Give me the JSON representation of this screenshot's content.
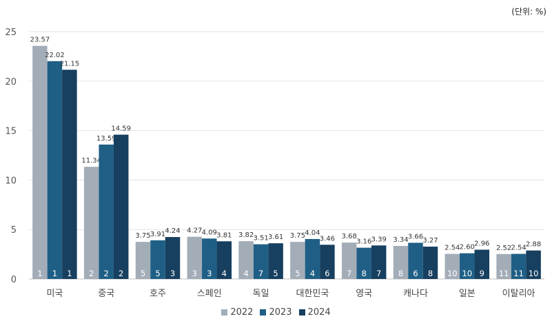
{
  "unit_label": "(단위: %)",
  "chart_data": {
    "type": "bar",
    "ylim": [
      0,
      25
    ],
    "yticks": [
      0,
      5,
      10,
      15,
      20,
      25
    ],
    "grid": true,
    "legend_position": "bottom",
    "categories": [
      "미국",
      "중국",
      "호주",
      "스페인",
      "독일",
      "대한민국",
      "영국",
      "캐나다",
      "일본",
      "이탈리아"
    ],
    "series": [
      {
        "name": "2022",
        "color": "#a3adb8",
        "values": [
          23.57,
          11.34,
          3.75,
          4.27,
          3.82,
          3.75,
          3.68,
          3.34,
          2.54,
          2.52
        ],
        "ranks": [
          1,
          2,
          5,
          3,
          4,
          5,
          7,
          8,
          10,
          11
        ]
      },
      {
        "name": "2023",
        "color": "#1f5f86",
        "values": [
          22.02,
          13.59,
          3.91,
          4.09,
          3.51,
          4.04,
          3.16,
          3.66,
          2.6,
          2.54
        ],
        "ranks": [
          1,
          2,
          5,
          3,
          7,
          4,
          8,
          6,
          10,
          11
        ]
      },
      {
        "name": "2024",
        "color": "#173f5f",
        "values": [
          21.15,
          14.59,
          4.24,
          3.81,
          3.61,
          3.46,
          3.39,
          3.27,
          2.96,
          2.88
        ],
        "ranks": [
          1,
          2,
          3,
          4,
          5,
          6,
          7,
          8,
          9,
          10
        ]
      }
    ]
  }
}
